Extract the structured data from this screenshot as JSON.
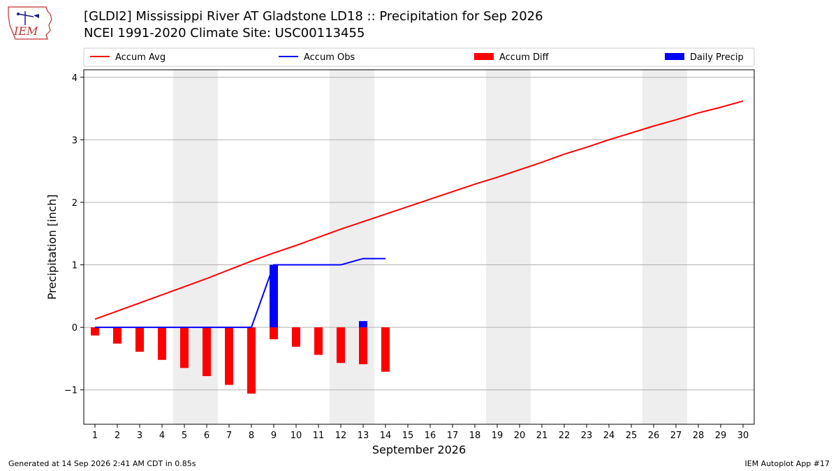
{
  "header": {
    "title": "[GLDI2] Mississippi River  AT Gladstone LD18 :: Precipitation for Sep 2026",
    "subtitle": "NCEI 1991-2020 Climate Site: USC00113455",
    "logo_text": "IEM"
  },
  "footer": {
    "generated": "Generated at 14 Sep 2026 2:41 AM CDT in 0.85s",
    "app": "IEM Autoplot App #17"
  },
  "colors": {
    "accum_avg": "#ff0000",
    "accum_obs": "#0000ff",
    "accum_diff": "#ff0000",
    "daily_precip": "#0000ff",
    "weekend_band": "#eeeeee",
    "grid": "#b0b0b0"
  },
  "chart_data": {
    "type": "bar",
    "xlabel": "September 2026",
    "ylabel": "Precipitation [inch]",
    "xlim": [
      0.5,
      30.5
    ],
    "ylim": [
      -1.55,
      4.12
    ],
    "y_ticks": [
      -1,
      0,
      1,
      2,
      3,
      4
    ],
    "y_tick_labels": [
      "−1",
      "0",
      "1",
      "2",
      "3",
      "4"
    ],
    "x_ticks": [
      1,
      2,
      3,
      4,
      5,
      6,
      7,
      8,
      9,
      10,
      11,
      12,
      13,
      14,
      15,
      16,
      17,
      18,
      19,
      20,
      21,
      22,
      23,
      24,
      25,
      26,
      27,
      28,
      29,
      30
    ],
    "x_tick_labels": [
      "1",
      "2",
      "3",
      "4",
      "5",
      "6",
      "7",
      "8",
      "9",
      "10",
      "11",
      "12",
      "13",
      "14",
      "15",
      "16",
      "17",
      "18",
      "19",
      "20",
      "21",
      "22",
      "23",
      "24",
      "25",
      "26",
      "27",
      "28",
      "29",
      "30"
    ],
    "grid": true,
    "legend_position": "top",
    "weekend_days": [
      5,
      6,
      12,
      13,
      19,
      20,
      26,
      27
    ],
    "series": [
      {
        "name": "Accum Avg",
        "kind": "line",
        "x": [
          1,
          2,
          3,
          4,
          5,
          6,
          7,
          8,
          9,
          10,
          11,
          12,
          13,
          14,
          15,
          16,
          17,
          18,
          19,
          20,
          21,
          22,
          23,
          24,
          25,
          26,
          27,
          28,
          29,
          30
        ],
        "values": [
          0.13,
          0.26,
          0.39,
          0.52,
          0.65,
          0.78,
          0.92,
          1.06,
          1.19,
          1.31,
          1.44,
          1.57,
          1.69,
          1.81,
          1.93,
          2.05,
          2.17,
          2.29,
          2.4,
          2.52,
          2.64,
          2.77,
          2.88,
          3.0,
          3.11,
          3.22,
          3.32,
          3.43,
          3.52,
          3.62
        ]
      },
      {
        "name": "Accum Obs",
        "kind": "line",
        "x": [
          1,
          2,
          3,
          4,
          5,
          6,
          7,
          8,
          9,
          10,
          11,
          12,
          13,
          14
        ],
        "values": [
          0,
          0,
          0,
          0,
          0,
          0,
          0,
          0,
          1.0,
          1.0,
          1.0,
          1.0,
          1.1,
          1.1
        ]
      },
      {
        "name": "Accum Diff",
        "kind": "bar",
        "x": [
          1,
          2,
          3,
          4,
          5,
          6,
          7,
          8,
          9,
          10,
          11,
          12,
          13,
          14
        ],
        "values": [
          -0.13,
          -0.26,
          -0.39,
          -0.52,
          -0.65,
          -0.78,
          -0.92,
          -1.06,
          -0.19,
          -0.31,
          -0.44,
          -0.57,
          -0.59,
          -0.71
        ]
      },
      {
        "name": "Daily Precip",
        "kind": "bar",
        "x": [
          1,
          2,
          3,
          4,
          5,
          6,
          7,
          8,
          9,
          10,
          11,
          12,
          13,
          14
        ],
        "values": [
          0,
          0,
          0,
          0,
          0,
          0,
          0,
          0,
          1.0,
          0,
          0,
          0,
          0.1,
          0
        ]
      }
    ]
  }
}
